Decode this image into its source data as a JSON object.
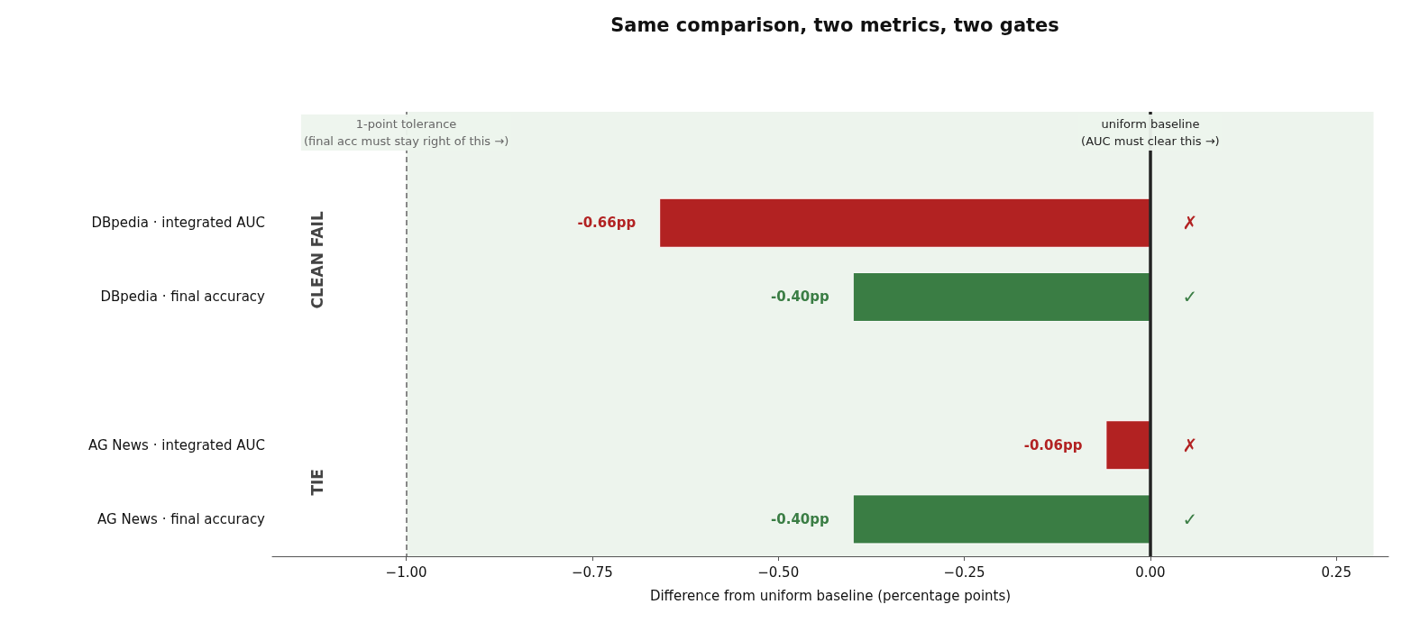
{
  "chart_data": {
    "type": "bar",
    "orientation": "horizontal",
    "title": "Same comparison, two metrics, two gates",
    "xlabel": "Difference from uniform baseline (percentage points)",
    "categories": [
      null,
      "DBpedia · integrated AUC",
      "DBpedia · final accuracy",
      null,
      "AG News · integrated AUC",
      "AG News · final accuracy"
    ],
    "values": [
      null,
      -0.66,
      -0.4,
      null,
      -0.06,
      -0.4
    ],
    "colors": [
      "#3a7d44",
      "#b22222",
      "#3a7d44",
      "#3a7d44",
      "#b22222",
      "#3a7d44"
    ],
    "value_labels": [
      null,
      "-0.66pp",
      "-0.40pp",
      null,
      "-0.06pp",
      "-0.40pp"
    ],
    "xlim": [
      -1.18,
      0.32
    ],
    "xticks": [
      {
        "value": -1,
        "label": "−1.00"
      },
      {
        "value": -0.75,
        "label": "−0.75"
      },
      {
        "value": -0.5,
        "label": "−0.50"
      },
      {
        "value": -0.25,
        "label": "−0.25"
      },
      {
        "value": 0,
        "label": "0.00"
      },
      {
        "value": 0.25,
        "label": "0.25"
      }
    ],
    "ref_lines": [
      {
        "axis": "x",
        "value": -1,
        "label": "1-point tolerance\n(final acc must stay right of this →)",
        "color": "#888888",
        "line_style": "dashed"
      },
      {
        "axis": "x",
        "value": 0,
        "label": "uniform baseline\n(AUC must clear this →)",
        "color": "#222222",
        "line_style": "solid"
      }
    ],
    "bands": [
      {
        "axis": "x",
        "from": -1,
        "to": 0.3,
        "color": "#edf4ed"
      }
    ],
    "annotations": [
      "CLEAN FAIL",
      "TIE",
      "✗",
      "✓",
      "✗",
      "✓"
    ],
    "grid": false
  }
}
